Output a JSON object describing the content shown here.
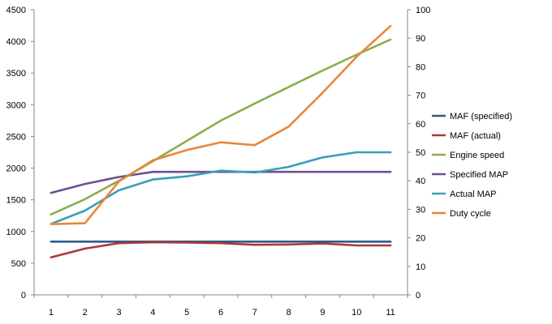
{
  "chart_data": {
    "type": "line",
    "title": "",
    "xlabel": "",
    "ylabel": "",
    "y2label": "",
    "grid": "none",
    "legend_position": "right",
    "x": [
      1,
      2,
      3,
      4,
      5,
      6,
      7,
      8,
      9,
      10,
      11
    ],
    "ylim": [
      0,
      4500
    ],
    "y_ticks": [
      0,
      500,
      1000,
      1500,
      2000,
      2500,
      3000,
      3500,
      4000,
      4500
    ],
    "y2lim": [
      0,
      100
    ],
    "y2_ticks": [
      0,
      10,
      20,
      30,
      40,
      50,
      60,
      70,
      80,
      90,
      100
    ],
    "series": [
      {
        "name": "MAF (specified)",
        "color": "#2e5b88",
        "axis": "left",
        "values": [
          840,
          840,
          840,
          840,
          840,
          840,
          840,
          840,
          840,
          840,
          840
        ]
      },
      {
        "name": "MAF (actual)",
        "color": "#a83a3a",
        "axis": "left",
        "values": [
          590,
          730,
          815,
          830,
          825,
          815,
          790,
          795,
          810,
          780,
          780
        ]
      },
      {
        "name": "Engine speed",
        "color": "#8aae4a",
        "axis": "left",
        "values": [
          1270,
          1510,
          1800,
          2110,
          2430,
          2750,
          3020,
          3280,
          3540,
          3790,
          4030
        ]
      },
      {
        "name": "Specified MAP",
        "color": "#6e4f95",
        "axis": "left",
        "values": [
          1610,
          1750,
          1860,
          1940,
          1940,
          1940,
          1940,
          1940,
          1940,
          1940,
          1940
        ]
      },
      {
        "name": "Actual MAP",
        "color": "#3a9fb5",
        "axis": "left",
        "values": [
          1120,
          1330,
          1650,
          1820,
          1870,
          1960,
          1930,
          2020,
          2170,
          2250,
          2250
        ]
      },
      {
        "name": "Duty cycle",
        "color": "#e8883a",
        "axis": "right",
        "values": [
          24.8,
          25.1,
          39.8,
          47.2,
          50.8,
          53.5,
          52.5,
          59.0,
          70.9,
          83.5,
          94.3
        ]
      }
    ]
  }
}
